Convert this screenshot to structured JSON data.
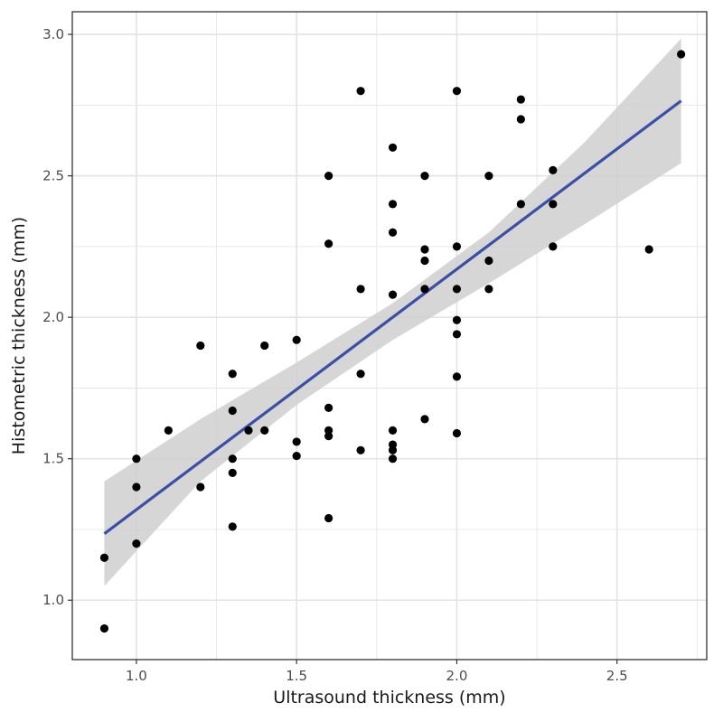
{
  "chart_data": {
    "type": "scatter",
    "title": "",
    "xlabel": "Ultrasound thickness (mm)",
    "ylabel": "Histometric thickness (mm)",
    "xlim": [
      0.8,
      2.78
    ],
    "ylim": [
      0.79,
      3.08
    ],
    "x_ticks": [
      1.0,
      1.5,
      2.0,
      2.5
    ],
    "x_tick_labels": [
      "1.0",
      "1.5",
      "2.0",
      "2.5"
    ],
    "y_ticks": [
      1.0,
      1.5,
      2.0,
      2.5,
      3.0
    ],
    "y_tick_labels": [
      "1.0",
      "1.5",
      "2.0",
      "2.5",
      "3.0"
    ],
    "grid": true,
    "points": [
      {
        "x": 0.9,
        "y": 1.15
      },
      {
        "x": 0.9,
        "y": 0.9
      },
      {
        "x": 1.0,
        "y": 1.5
      },
      {
        "x": 1.0,
        "y": 1.4
      },
      {
        "x": 1.0,
        "y": 1.2
      },
      {
        "x": 1.1,
        "y": 1.6
      },
      {
        "x": 1.2,
        "y": 1.9
      },
      {
        "x": 1.2,
        "y": 1.4
      },
      {
        "x": 1.3,
        "y": 1.8
      },
      {
        "x": 1.3,
        "y": 1.67
      },
      {
        "x": 1.3,
        "y": 1.5
      },
      {
        "x": 1.3,
        "y": 1.45
      },
      {
        "x": 1.3,
        "y": 1.26
      },
      {
        "x": 1.35,
        "y": 1.6
      },
      {
        "x": 1.4,
        "y": 1.9
      },
      {
        "x": 1.4,
        "y": 1.6
      },
      {
        "x": 1.5,
        "y": 1.92
      },
      {
        "x": 1.5,
        "y": 1.56
      },
      {
        "x": 1.5,
        "y": 1.51
      },
      {
        "x": 1.6,
        "y": 2.5
      },
      {
        "x": 1.6,
        "y": 2.26
      },
      {
        "x": 1.6,
        "y": 1.68
      },
      {
        "x": 1.6,
        "y": 1.6
      },
      {
        "x": 1.6,
        "y": 1.58
      },
      {
        "x": 1.6,
        "y": 1.29
      },
      {
        "x": 1.7,
        "y": 2.8
      },
      {
        "x": 1.7,
        "y": 2.1
      },
      {
        "x": 1.7,
        "y": 1.8
      },
      {
        "x": 1.7,
        "y": 1.53
      },
      {
        "x": 1.8,
        "y": 2.6
      },
      {
        "x": 1.8,
        "y": 2.4
      },
      {
        "x": 1.8,
        "y": 2.3
      },
      {
        "x": 1.8,
        "y": 2.08
      },
      {
        "x": 1.8,
        "y": 1.6
      },
      {
        "x": 1.8,
        "y": 1.55
      },
      {
        "x": 1.8,
        "y": 1.53
      },
      {
        "x": 1.8,
        "y": 1.5
      },
      {
        "x": 1.9,
        "y": 2.5
      },
      {
        "x": 1.9,
        "y": 2.24
      },
      {
        "x": 1.9,
        "y": 2.2
      },
      {
        "x": 1.9,
        "y": 2.1
      },
      {
        "x": 1.9,
        "y": 1.64
      },
      {
        "x": 2.0,
        "y": 2.8
      },
      {
        "x": 2.0,
        "y": 2.25
      },
      {
        "x": 2.0,
        "y": 2.1
      },
      {
        "x": 2.0,
        "y": 1.99
      },
      {
        "x": 2.0,
        "y": 1.94
      },
      {
        "x": 2.0,
        "y": 1.79
      },
      {
        "x": 2.0,
        "y": 1.59
      },
      {
        "x": 2.1,
        "y": 2.5
      },
      {
        "x": 2.1,
        "y": 2.2
      },
      {
        "x": 2.1,
        "y": 2.1
      },
      {
        "x": 2.2,
        "y": 2.77
      },
      {
        "x": 2.2,
        "y": 2.7
      },
      {
        "x": 2.2,
        "y": 2.4
      },
      {
        "x": 2.3,
        "y": 2.52
      },
      {
        "x": 2.3,
        "y": 2.4
      },
      {
        "x": 2.3,
        "y": 2.25
      },
      {
        "x": 2.6,
        "y": 2.24
      },
      {
        "x": 2.7,
        "y": 2.93
      }
    ],
    "fit_line": {
      "x": [
        0.9,
        2.7
      ],
      "y": [
        1.235,
        2.765
      ]
    },
    "confidence_band": {
      "x": [
        0.9,
        1.2,
        1.5,
        1.8,
        2.1,
        2.4,
        2.7
      ],
      "lower": [
        1.05,
        1.42,
        1.69,
        1.92,
        2.12,
        2.33,
        2.545
      ],
      "upper": [
        1.42,
        1.64,
        1.84,
        2.05,
        2.3,
        2.62,
        2.985
      ]
    },
    "colors": {
      "points": "#000000",
      "fit_line": "#3a4fa5",
      "band": "#cfcfcf",
      "grid": "#e3e3e3",
      "panel_border": "#333333"
    }
  }
}
